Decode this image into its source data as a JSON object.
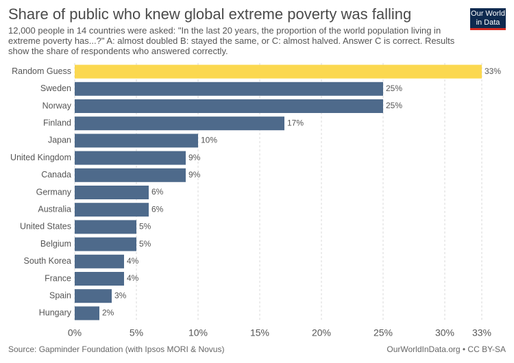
{
  "chart_data": {
    "type": "bar",
    "orientation": "horizontal",
    "title": "Share of public who knew global extreme poverty was falling",
    "subtitle": "12,000 people in 14 countries were asked: \"In the last 20 years, the proportion of the world population living in extreme poverty has...?\" A: almost doubled B: stayed the same, or C: almost halved. Answer C is correct. Results show the share of respondents who answered correctly.",
    "logo": [
      "Our World",
      "in Data"
    ],
    "categories": [
      "Random Guess",
      "Sweden",
      "Norway",
      "Finland",
      "Japan",
      "United Kingdom",
      "Canada",
      "Germany",
      "Australia",
      "United States",
      "Belgium",
      "South Korea",
      "France",
      "Spain",
      "Hungary"
    ],
    "values": [
      33,
      25,
      25,
      17,
      10,
      9,
      9,
      6,
      6,
      5,
      5,
      4,
      4,
      3,
      2
    ],
    "value_labels": [
      "33%",
      "25%",
      "25%",
      "17%",
      "10%",
      "9%",
      "9%",
      "6%",
      "6%",
      "5%",
      "5%",
      "4%",
      "4%",
      "3%",
      "2%"
    ],
    "colors": [
      "#fbd850",
      "#4e6a8b",
      "#4e6a8b",
      "#4e6a8b",
      "#4e6a8b",
      "#4e6a8b",
      "#4e6a8b",
      "#4e6a8b",
      "#4e6a8b",
      "#4e6a8b",
      "#4e6a8b",
      "#4e6a8b",
      "#4e6a8b",
      "#4e6a8b",
      "#4e6a8b"
    ],
    "xlim": [
      0,
      33
    ],
    "xticks": [
      {
        "value": 0,
        "label": "0%"
      },
      {
        "value": 5,
        "label": "5%"
      },
      {
        "value": 10,
        "label": "10%"
      },
      {
        "value": 15,
        "label": "15%"
      },
      {
        "value": 20,
        "label": "20%"
      },
      {
        "value": 25,
        "label": "25%"
      },
      {
        "value": 30,
        "label": "30%"
      },
      {
        "value": 33,
        "label": "33%"
      }
    ],
    "grid": true,
    "source": "Source: Gapminder Foundation (with Ipsos MORI & Novus)",
    "credit": "OurWorldInData.org • CC BY-SA"
  }
}
